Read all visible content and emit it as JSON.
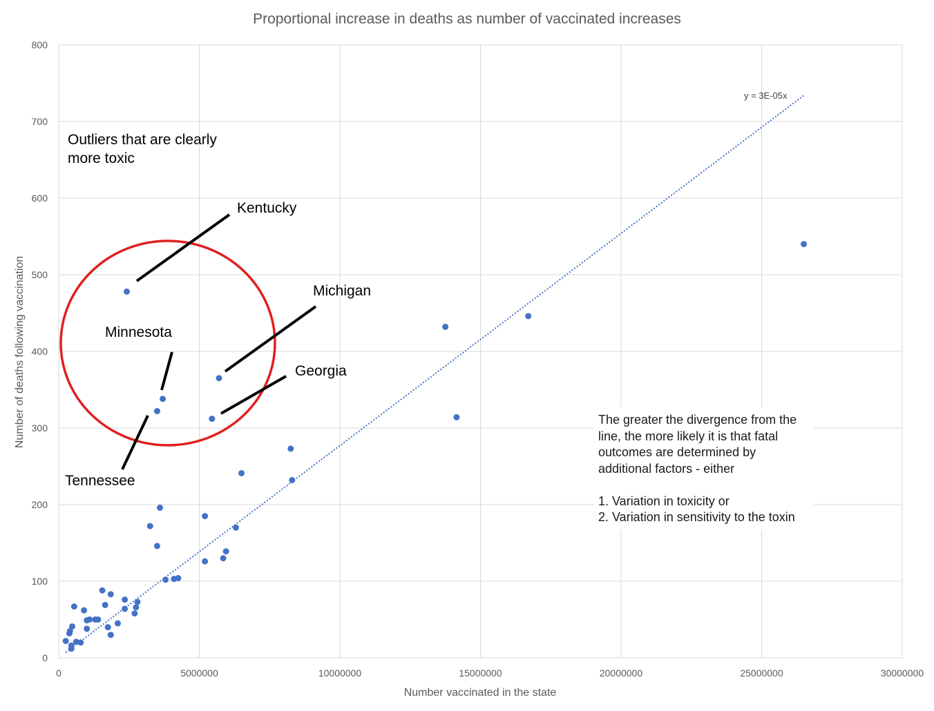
{
  "chart_data": {
    "type": "scatter",
    "title": "Proportional increase in deaths as  number of vaccinated increases",
    "xlabel": "Number vaccinated in the state",
    "ylabel": "Number of deaths following vaccination",
    "xlim": [
      0,
      30000000
    ],
    "ylim": [
      0,
      800
    ],
    "xticks": [
      0,
      5000000,
      10000000,
      15000000,
      20000000,
      25000000,
      30000000
    ],
    "yticks": [
      0,
      100,
      200,
      300,
      400,
      500,
      600,
      700,
      800
    ],
    "xtick_labels": [
      "0",
      "5000000",
      "10000000",
      "15000000",
      "20000000",
      "25000000",
      "30000000"
    ],
    "ytick_labels": [
      "0",
      "100",
      "200",
      "300",
      "400",
      "500",
      "600",
      "700",
      "800"
    ],
    "grid": true,
    "marker_color": "#4472C4",
    "trendline": {
      "label": "y = 3E-05x",
      "slope": 2.77e-05,
      "x_range": [
        250000,
        26500000
      ],
      "style": "dotted",
      "color": "#4472C4"
    },
    "points": [
      {
        "x": 2420000,
        "y": 478
      },
      {
        "x": 3700000,
        "y": 338
      },
      {
        "x": 3500000,
        "y": 322
      },
      {
        "x": 5700000,
        "y": 365
      },
      {
        "x": 5450000,
        "y": 312
      },
      {
        "x": 13750000,
        "y": 432
      },
      {
        "x": 16700000,
        "y": 446
      },
      {
        "x": 26500000,
        "y": 540
      },
      {
        "x": 14150000,
        "y": 314
      },
      {
        "x": 8250000,
        "y": 273
      },
      {
        "x": 6500000,
        "y": 241
      },
      {
        "x": 8300000,
        "y": 232
      },
      {
        "x": 3600000,
        "y": 196
      },
      {
        "x": 5200000,
        "y": 185
      },
      {
        "x": 3250000,
        "y": 172
      },
      {
        "x": 6300000,
        "y": 170
      },
      {
        "x": 3500000,
        "y": 146
      },
      {
        "x": 5950000,
        "y": 139
      },
      {
        "x": 5850000,
        "y": 130
      },
      {
        "x": 5200000,
        "y": 126
      },
      {
        "x": 4250000,
        "y": 104
      },
      {
        "x": 4100000,
        "y": 103
      },
      {
        "x": 3800000,
        "y": 102
      },
      {
        "x": 1550000,
        "y": 88
      },
      {
        "x": 1850000,
        "y": 83
      },
      {
        "x": 2350000,
        "y": 76
      },
      {
        "x": 2800000,
        "y": 73
      },
      {
        "x": 1650000,
        "y": 69
      },
      {
        "x": 550000,
        "y": 67
      },
      {
        "x": 2750000,
        "y": 66
      },
      {
        "x": 2350000,
        "y": 64
      },
      {
        "x": 900000,
        "y": 62
      },
      {
        "x": 2700000,
        "y": 58
      },
      {
        "x": 1100000,
        "y": 50
      },
      {
        "x": 1300000,
        "y": 50
      },
      {
        "x": 1400000,
        "y": 50
      },
      {
        "x": 1000000,
        "y": 49
      },
      {
        "x": 2100000,
        "y": 45
      },
      {
        "x": 480000,
        "y": 41
      },
      {
        "x": 1750000,
        "y": 40
      },
      {
        "x": 1000000,
        "y": 38
      },
      {
        "x": 400000,
        "y": 35
      },
      {
        "x": 380000,
        "y": 32
      },
      {
        "x": 1850000,
        "y": 30
      },
      {
        "x": 250000,
        "y": 22
      },
      {
        "x": 620000,
        "y": 21
      },
      {
        "x": 780000,
        "y": 20
      },
      {
        "x": 450000,
        "y": 16
      },
      {
        "x": 450000,
        "y": 12
      }
    ],
    "annotations": {
      "outliers_text": [
        "Outliers that are clearly",
        "more toxic"
      ],
      "kentucky": "Kentucky",
      "michigan": "Michigan",
      "minnesota": "Minnesota",
      "georgia": "Georgia",
      "tennessee": "Tennessee",
      "note": [
        "The greater the divergence from the",
        "line, the more likely it is that fatal",
        "outcomes are determined by",
        "additional factors - either",
        "",
        "1. Variation in toxicity or",
        "2. Variation in sensitivity to the toxin"
      ]
    }
  }
}
